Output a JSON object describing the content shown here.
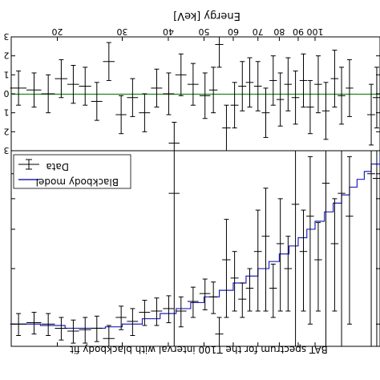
{
  "figure": {
    "top_axis_label": "Energy [keV]",
    "caption": "BAT spectrum for the T100 interval with blackbody fit",
    "colors": {
      "data": "#000000",
      "model": "#2222bb",
      "zero_line": "#1a8a1a",
      "frame": "#000000"
    }
  },
  "chart_data": [
    {
      "type": "scatter",
      "panel": "residuals",
      "xlabel": "Energy [keV]",
      "xscale": "log",
      "xlim": [
        15,
        150
      ],
      "ylim": [
        -3,
        3
      ],
      "xticks": [
        20,
        30,
        40,
        50,
        60,
        70,
        80,
        90,
        100
      ],
      "xtick_labels": [
        "20",
        "30",
        "40",
        "50",
        "60",
        "70",
        "80",
        "90",
        "100"
      ],
      "yticks": [
        3,
        2,
        1,
        0,
        -1,
        -2,
        -3
      ],
      "ytick_labels": [
        "3",
        "2",
        "1",
        "0",
        "1",
        "2",
        "3"
      ],
      "reference_line": 0,
      "series": [
        {
          "points": [
            {
              "x": 15.7,
              "y": 0.3,
              "xerr": 0.8,
              "yerr": 0.9
            },
            {
              "x": 17.3,
              "y": 0.2,
              "xerr": 0.8,
              "yerr": 0.9
            },
            {
              "x": 18.9,
              "y": 0.0,
              "xerr": 0.8,
              "yerr": 1.0
            },
            {
              "x": 20.5,
              "y": 0.8,
              "xerr": 0.8,
              "yerr": 1.0
            },
            {
              "x": 22.1,
              "y": 0.5,
              "xerr": 0.8,
              "yerr": 1.0
            },
            {
              "x": 23.8,
              "y": 0.4,
              "xerr": 0.9,
              "yerr": 1.0
            },
            {
              "x": 25.6,
              "y": -0.4,
              "xerr": 0.9,
              "yerr": 1.0
            },
            {
              "x": 27.6,
              "y": 1.7,
              "xerr": 1.0,
              "yerr": 1.0
            },
            {
              "x": 29.8,
              "y": -1.1,
              "xerr": 1.0,
              "yerr": 1.0
            },
            {
              "x": 32.0,
              "y": -0.2,
              "xerr": 1.1,
              "yerr": 1.0
            },
            {
              "x": 34.5,
              "y": -1.0,
              "xerr": 1.2,
              "yerr": 1.0
            },
            {
              "x": 37.2,
              "y": 0.3,
              "xerr": 1.3,
              "yerr": 1.0
            },
            {
              "x": 40.1,
              "y": 0.0,
              "xerr": 1.4,
              "yerr": 1.1
            },
            {
              "x": 41.5,
              "y": -2.6,
              "xerr": 1.4,
              "yerr": 1.1
            },
            {
              "x": 43.3,
              "y": 1.0,
              "xerr": 1.5,
              "yerr": 1.1
            },
            {
              "x": 46.7,
              "y": 0.5,
              "xerr": 1.6,
              "yerr": 1.1
            },
            {
              "x": 50.3,
              "y": -0.1,
              "xerr": 1.7,
              "yerr": 1.2
            },
            {
              "x": 53.0,
              "y": 0.2,
              "xerr": 1.4,
              "yerr": 1.2
            },
            {
              "x": 55.0,
              "y": 2.6,
              "xerr": 1.4,
              "yerr": 1.2
            },
            {
              "x": 57.5,
              "y": -1.8,
              "xerr": 1.5,
              "yerr": 1.2
            },
            {
              "x": 60.5,
              "y": -0.6,
              "xerr": 1.5,
              "yerr": 1.2
            },
            {
              "x": 63.5,
              "y": 0.4,
              "xerr": 1.6,
              "yerr": 1.3
            },
            {
              "x": 66.5,
              "y": 0.6,
              "xerr": 1.6,
              "yerr": 1.3
            },
            {
              "x": 70.0,
              "y": 0.4,
              "xerr": 1.7,
              "yerr": 1.3
            },
            {
              "x": 73.5,
              "y": -1.0,
              "xerr": 1.8,
              "yerr": 1.3
            },
            {
              "x": 77.0,
              "y": 0.7,
              "xerr": 1.8,
              "yerr": 1.3
            },
            {
              "x": 80.5,
              "y": -0.3,
              "xerr": 1.9,
              "yerr": 1.4
            },
            {
              "x": 84.5,
              "y": 0.5,
              "xerr": 2.0,
              "yerr": 1.4
            },
            {
              "x": 88.5,
              "y": -0.2,
              "xerr": 2.1,
              "yerr": 1.4
            },
            {
              "x": 93.0,
              "y": 0.7,
              "xerr": 2.2,
              "yerr": 1.4
            },
            {
              "x": 97.0,
              "y": -0.7,
              "xerr": 2.3,
              "yerr": 1.4
            },
            {
              "x": 102.0,
              "y": 0.5,
              "xerr": 2.4,
              "yerr": 1.5
            },
            {
              "x": 107.0,
              "y": -0.9,
              "xerr": 2.5,
              "yerr": 1.5
            },
            {
              "x": 113.0,
              "y": 0.8,
              "xerr": 2.7,
              "yerr": 1.5
            },
            {
              "x": 118.0,
              "y": -0.1,
              "xerr": 2.8,
              "yerr": 1.5
            },
            {
              "x": 124.0,
              "y": 0.3,
              "xerr": 2.9,
              "yerr": 1.5
            },
            {
              "x": 142.0,
              "y": -1.1,
              "xerr": 3.5,
              "yerr": 1.6
            },
            {
              "x": 147.0,
              "y": -0.2,
              "xerr": 3.6,
              "yerr": 1.6
            }
          ]
        }
      ]
    },
    {
      "type": "line",
      "panel": "spectrum",
      "title": "BAT spectrum for the T100 interval with blackbody fit",
      "xscale": "log",
      "xlim": [
        15,
        150
      ],
      "legend": {
        "position": "top-left",
        "entries": [
          "Data",
          "Blackbody model"
        ]
      },
      "series": [
        {
          "name": "Data",
          "points": [
            {
              "x": 15.7,
              "y": 1.0,
              "xerr": 0.8,
              "yerr": 0.08
            },
            {
              "x": 17.3,
              "y": 1.01,
              "xerr": 0.8,
              "yerr": 0.08
            },
            {
              "x": 18.9,
              "y": 1.0,
              "xerr": 0.8,
              "yerr": 0.08
            },
            {
              "x": 20.5,
              "y": 0.97,
              "xerr": 0.8,
              "yerr": 0.08
            },
            {
              "x": 22.1,
              "y": 0.95,
              "xerr": 0.8,
              "yerr": 0.08
            },
            {
              "x": 23.8,
              "y": 0.96,
              "xerr": 0.9,
              "yerr": 0.09
            },
            {
              "x": 25.6,
              "y": 0.97,
              "xerr": 0.9,
              "yerr": 0.09
            },
            {
              "x": 27.6,
              "y": 0.9,
              "xerr": 1.0,
              "yerr": 0.09
            },
            {
              "x": 29.8,
              "y": 1.05,
              "xerr": 1.0,
              "yerr": 0.09
            },
            {
              "x": 32.0,
              "y": 1.02,
              "xerr": 1.1,
              "yerr": 0.1
            },
            {
              "x": 34.5,
              "y": 1.09,
              "xerr": 1.2,
              "yerr": 0.1
            },
            {
              "x": 37.2,
              "y": 1.1,
              "xerr": 1.3,
              "yerr": 0.11
            },
            {
              "x": 40.1,
              "y": 1.12,
              "xerr": 1.4,
              "yerr": 0.11
            },
            {
              "x": 41.5,
              "y": 2.6,
              "xerr": 1.4,
              "yerr": 2.3
            },
            {
              "x": 43.3,
              "y": 1.1,
              "xerr": 1.5,
              "yerr": 0.12
            },
            {
              "x": 46.7,
              "y": 1.18,
              "xerr": 1.6,
              "yerr": 0.13
            },
            {
              "x": 50.3,
              "y": 1.25,
              "xerr": 1.7,
              "yerr": 0.14
            },
            {
              "x": 53.0,
              "y": 1.22,
              "xerr": 1.4,
              "yerr": 0.14
            },
            {
              "x": 55.0,
              "y": 0.93,
              "xerr": 1.4,
              "yerr": 0.12
            },
            {
              "x": 57.5,
              "y": 1.6,
              "xerr": 1.5,
              "yerr": 0.55
            },
            {
              "x": 60.5,
              "y": 1.4,
              "xerr": 1.5,
              "yerr": 0.3
            },
            {
              "x": 63.5,
              "y": 1.2,
              "xerr": 1.6,
              "yerr": 0.15
            },
            {
              "x": 66.5,
              "y": 1.3,
              "xerr": 1.6,
              "yerr": 0.2
            },
            {
              "x": 70.0,
              "y": 1.7,
              "xerr": 1.7,
              "yerr": 0.6
            },
            {
              "x": 73.5,
              "y": 1.9,
              "xerr": 1.8,
              "yerr": 0.8
            },
            {
              "x": 77.0,
              "y": 1.3,
              "xerr": 1.8,
              "yerr": 0.25
            },
            {
              "x": 80.5,
              "y": 1.8,
              "xerr": 1.9,
              "yerr": 0.7
            },
            {
              "x": 84.5,
              "y": 1.5,
              "xerr": 2.0,
              "yerr": 0.4
            },
            {
              "x": 88.5,
              "y": 2.4,
              "xerr": 2.1,
              "yerr": 1.6
            },
            {
              "x": 93.0,
              "y": 1.7,
              "xerr": 2.2,
              "yerr": 0.6
            },
            {
              "x": 97.0,
              "y": 2.2,
              "xerr": 2.3,
              "yerr": 1.2
            },
            {
              "x": 102.0,
              "y": 1.6,
              "xerr": 2.4,
              "yerr": 0.5
            },
            {
              "x": 107.0,
              "y": 2.8,
              "xerr": 2.5,
              "yerr": 2.0
            },
            {
              "x": 113.0,
              "y": 1.8,
              "xerr": 2.7,
              "yerr": 0.7
            },
            {
              "x": 118.0,
              "y": 2.6,
              "xerr": 2.8,
              "yerr": 1.8
            },
            {
              "x": 124.0,
              "y": 2.2,
              "xerr": 2.9,
              "yerr": 1.2
            },
            {
              "x": 142.0,
              "y": 3.0,
              "xerr": 3.5,
              "yerr": 2.2
            },
            {
              "x": 147.0,
              "y": 2.9,
              "xerr": 3.6,
              "yerr": 2.2
            }
          ]
        },
        {
          "name": "Blackbody model",
          "line_style": "step",
          "points": [
            {
              "x": 15.0,
              "y": 1.0
            },
            {
              "x": 18.0,
              "y": 0.99
            },
            {
              "x": 21.0,
              "y": 0.97
            },
            {
              "x": 24.0,
              "y": 0.97
            },
            {
              "x": 27.0,
              "y": 0.98
            },
            {
              "x": 30.0,
              "y": 1.0
            },
            {
              "x": 34.0,
              "y": 1.04
            },
            {
              "x": 38.0,
              "y": 1.08
            },
            {
              "x": 42.0,
              "y": 1.12
            },
            {
              "x": 46.0,
              "y": 1.17
            },
            {
              "x": 50.0,
              "y": 1.22
            },
            {
              "x": 55.0,
              "y": 1.28
            },
            {
              "x": 60.0,
              "y": 1.35
            },
            {
              "x": 65.0,
              "y": 1.42
            },
            {
              "x": 70.0,
              "y": 1.5
            },
            {
              "x": 75.0,
              "y": 1.58
            },
            {
              "x": 80.0,
              "y": 1.67
            },
            {
              "x": 85.0,
              "y": 1.77
            },
            {
              "x": 90.0,
              "y": 1.88
            },
            {
              "x": 95.0,
              "y": 2.0
            },
            {
              "x": 100.0,
              "y": 2.12
            },
            {
              "x": 106.0,
              "y": 2.27
            },
            {
              "x": 112.0,
              "y": 2.42
            },
            {
              "x": 118.0,
              "y": 2.57
            },
            {
              "x": 124.0,
              "y": 2.72
            },
            {
              "x": 130.0,
              "y": 2.88
            },
            {
              "x": 136.0,
              "y": 3.05
            },
            {
              "x": 142.0,
              "y": 3.22
            },
            {
              "x": 150.0,
              "y": 3.45
            }
          ]
        }
      ]
    }
  ]
}
